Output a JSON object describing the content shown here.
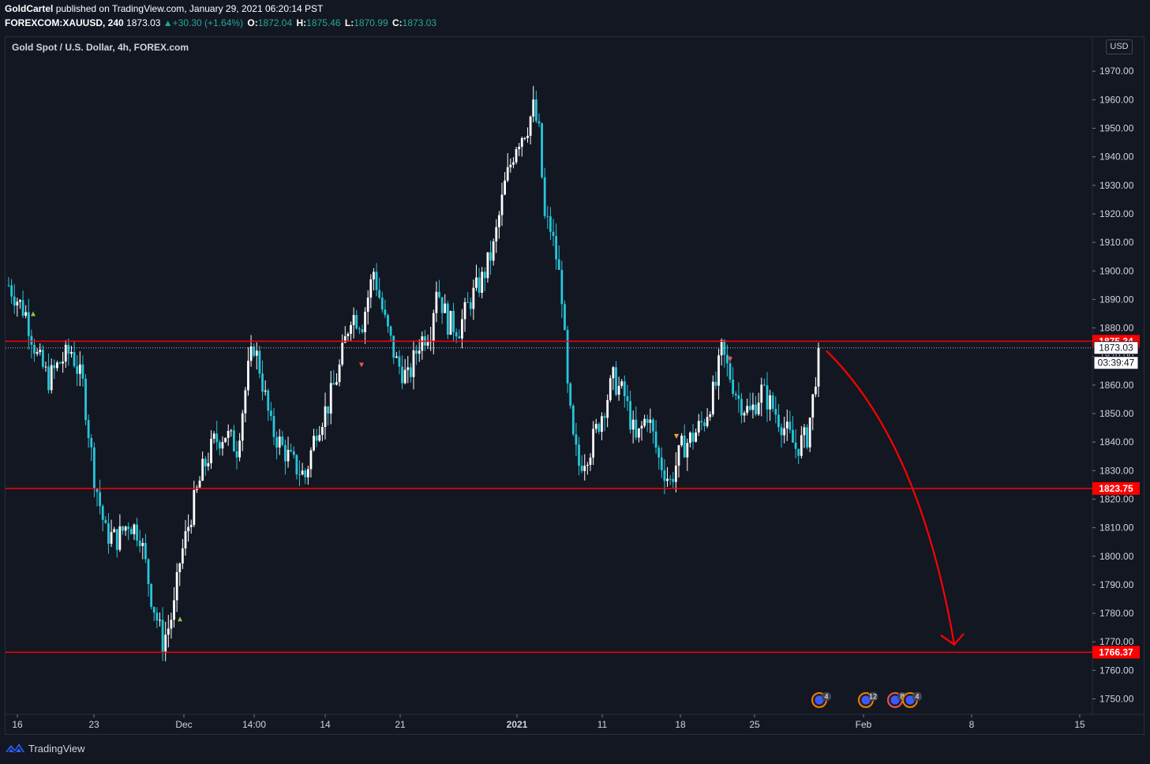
{
  "header": {
    "author": "GoldCartel",
    "published": "published on TradingView.com, January 29, 2021 06:20:14 PST",
    "symbol": "FOREXCOM:XAUUSD, 240",
    "last": "1873.03",
    "change": "+30.30 (+1.64%)",
    "o_label": "O:",
    "o": "1872.04",
    "h_label": "H:",
    "h": "1875.46",
    "l_label": "L:",
    "l": "1870.99",
    "c_label": "C:",
    "c": "1873.03"
  },
  "pane_title": "Gold Spot / U.S. Dollar, 4h, FOREX.com",
  "currency_button": "USD",
  "footer": {
    "brand": "TradingView"
  },
  "colors": {
    "bg": "#131722",
    "up": "#ffffff",
    "down": "#26c6da",
    "level": "#ff0000",
    "arrow": "#ff0000"
  },
  "chart_data": {
    "type": "candlestick",
    "title": "Gold Spot / U.S. Dollar, 4h, FOREX.com",
    "ylim": [
      1743,
      1981
    ],
    "y_ticks": [
      1750,
      1760,
      1770,
      1780,
      1790,
      1800,
      1810,
      1820,
      1830,
      1840,
      1850,
      1860,
      1870,
      1880,
      1890,
      1900,
      1910,
      1920,
      1930,
      1940,
      1950,
      1960,
      1970
    ],
    "x_ticks": [
      "16",
      "23",
      "Dec",
      "14:00",
      "14",
      "21",
      "2021",
      "11",
      "18",
      "25",
      "Feb",
      "8",
      "15"
    ],
    "path": [
      [
        0,
        1895
      ],
      [
        6,
        1885
      ],
      [
        10,
        1870
      ],
      [
        14,
        1862
      ],
      [
        18,
        1868
      ],
      [
        22,
        1872
      ],
      [
        26,
        1860
      ],
      [
        30,
        1828
      ],
      [
        34,
        1808
      ],
      [
        38,
        1806
      ],
      [
        42,
        1812
      ],
      [
        46,
        1808
      ],
      [
        50,
        1786
      ],
      [
        54,
        1770
      ],
      [
        56,
        1775
      ],
      [
        58,
        1782
      ],
      [
        60,
        1798
      ],
      [
        64,
        1815
      ],
      [
        68,
        1830
      ],
      [
        72,
        1840
      ],
      [
        76,
        1843
      ],
      [
        80,
        1838
      ],
      [
        84,
        1865
      ],
      [
        86,
        1874
      ],
      [
        88,
        1866
      ],
      [
        92,
        1845
      ],
      [
        96,
        1838
      ],
      [
        100,
        1832
      ],
      [
        104,
        1828
      ],
      [
        108,
        1845
      ],
      [
        112,
        1853
      ],
      [
        116,
        1866
      ],
      [
        120,
        1885
      ],
      [
        124,
        1882
      ],
      [
        128,
        1900
      ],
      [
        132,
        1882
      ],
      [
        136,
        1868
      ],
      [
        140,
        1862
      ],
      [
        144,
        1875
      ],
      [
        148,
        1880
      ],
      [
        150,
        1895
      ],
      [
        154,
        1882
      ],
      [
        158,
        1880
      ],
      [
        162,
        1890
      ],
      [
        166,
        1897
      ],
      [
        170,
        1908
      ],
      [
        174,
        1930
      ],
      [
        178,
        1945
      ],
      [
        182,
        1951
      ],
      [
        184,
        1957
      ],
      [
        186,
        1948
      ],
      [
        188,
        1918
      ],
      [
        190,
        1915
      ],
      [
        192,
        1905
      ],
      [
        194,
        1892
      ],
      [
        196,
        1858
      ],
      [
        198,
        1840
      ],
      [
        200,
        1832
      ],
      [
        204,
        1838
      ],
      [
        208,
        1850
      ],
      [
        212,
        1862
      ],
      [
        216,
        1856
      ],
      [
        220,
        1840
      ],
      [
        224,
        1850
      ],
      [
        228,
        1834
      ],
      [
        232,
        1826
      ],
      [
        236,
        1838
      ],
      [
        240,
        1842
      ],
      [
        244,
        1848
      ],
      [
        248,
        1860
      ],
      [
        250,
        1872
      ],
      [
        252,
        1866
      ],
      [
        256,
        1855
      ],
      [
        260,
        1850
      ],
      [
        264,
        1858
      ],
      [
        268,
        1852
      ],
      [
        272,
        1845
      ],
      [
        276,
        1838
      ],
      [
        280,
        1842
      ],
      [
        282,
        1855
      ],
      [
        284,
        1872
      ]
    ],
    "levels": [
      {
        "value": 1875.34,
        "label": "1875.34"
      },
      {
        "value": 1823.75,
        "label": "1823.75"
      },
      {
        "value": 1766.37,
        "label": "1766.37"
      }
    ],
    "last_price": {
      "value": 1873.03,
      "label": "1873.03"
    },
    "countdown": "03:39:47",
    "event_badges": [
      {
        "count": "4"
      },
      {
        "count": "12"
      },
      {
        "count": "8"
      },
      {
        "count": "4"
      }
    ],
    "forecast_arrow": {
      "from": [
        1875,
        "Jan 29"
      ],
      "to": [
        1768,
        "Feb 6"
      ],
      "direction": "down"
    }
  }
}
